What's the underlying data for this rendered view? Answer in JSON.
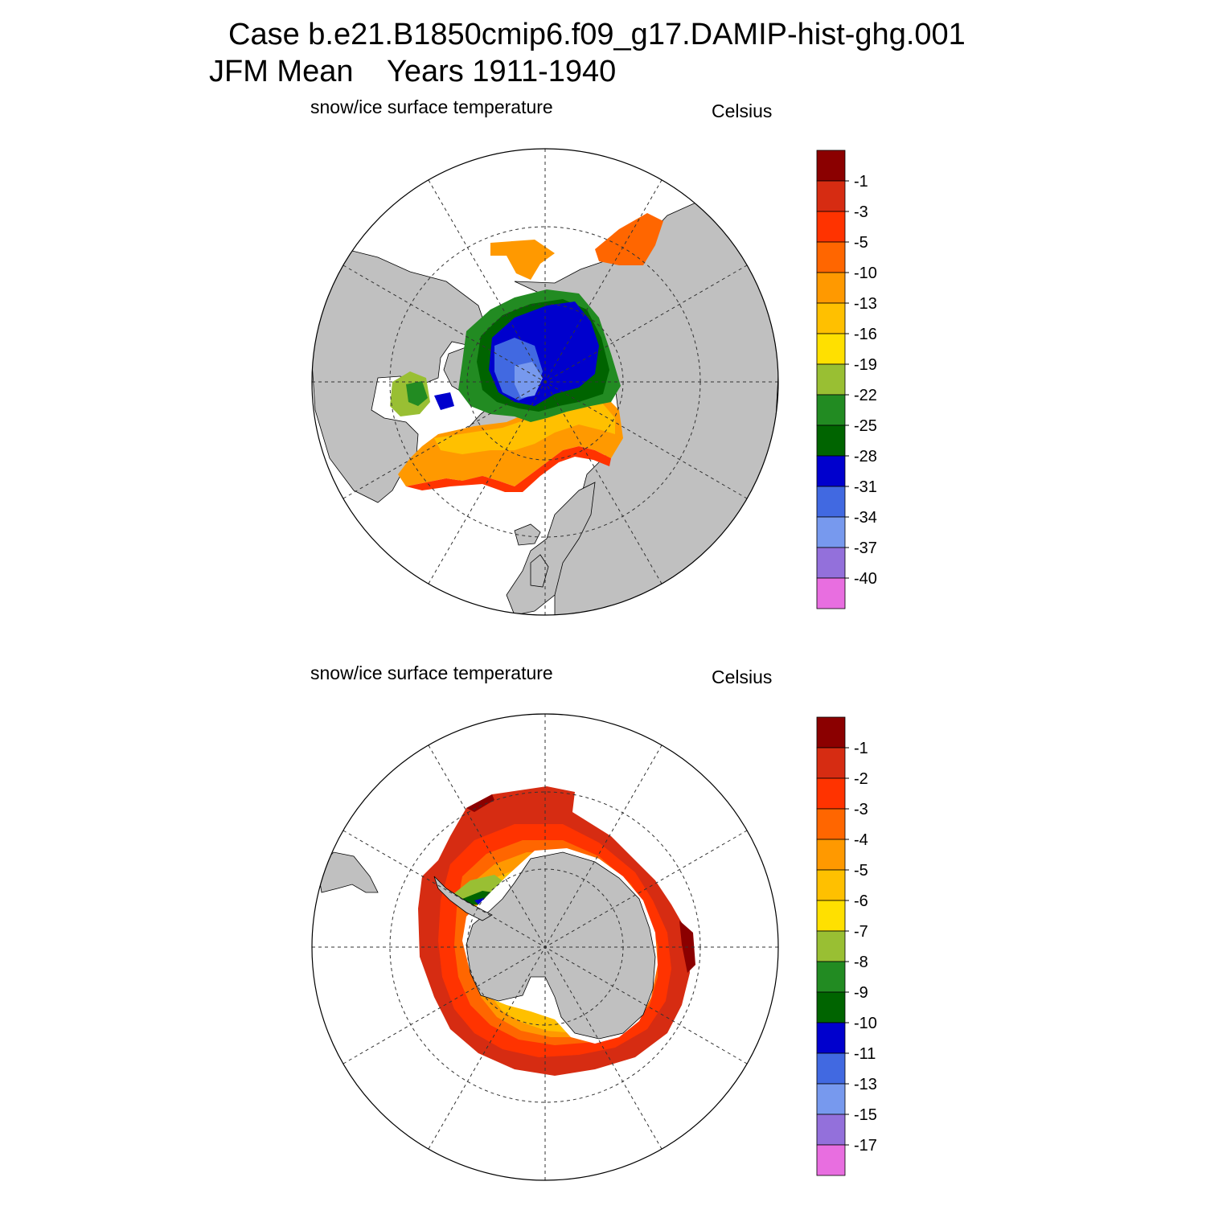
{
  "title": {
    "case": "Case b.e21.B1850cmip6.f09_g17.DAMIP-hist-ghg.001",
    "season": "JFM Mean",
    "years": "Years 1911-1940"
  },
  "north_panel": {
    "variable": "snow/ice surface temperature",
    "units": "Celsius",
    "colorbar_labels": [
      "-1",
      "-3",
      "-5",
      "-10",
      "-13",
      "-16",
      "-19",
      "-22",
      "-25",
      "-28",
      "-31",
      "-34",
      "-37",
      "-40"
    ]
  },
  "south_panel": {
    "variable": "snow/ice surface temperature",
    "units": "Celsius",
    "colorbar_labels": [
      "-1",
      "-2",
      "-3",
      "-4",
      "-5",
      "-6",
      "-7",
      "-8",
      "-9",
      "-10",
      "-11",
      "-13",
      "-15",
      "-17"
    ]
  },
  "colors": {
    "colorbar": [
      "#8b0000",
      "#d62c12",
      "#ff3300",
      "#ff6600",
      "#ff9900",
      "#ffc000",
      "#ffe000",
      "#99bf33",
      "#228b22",
      "#006400",
      "#0000cd",
      "#4169e1",
      "#7799ee",
      "#9370db",
      "#e86ee0"
    ],
    "land": "#c0c0c0",
    "ocean": "#ffffff"
  }
}
